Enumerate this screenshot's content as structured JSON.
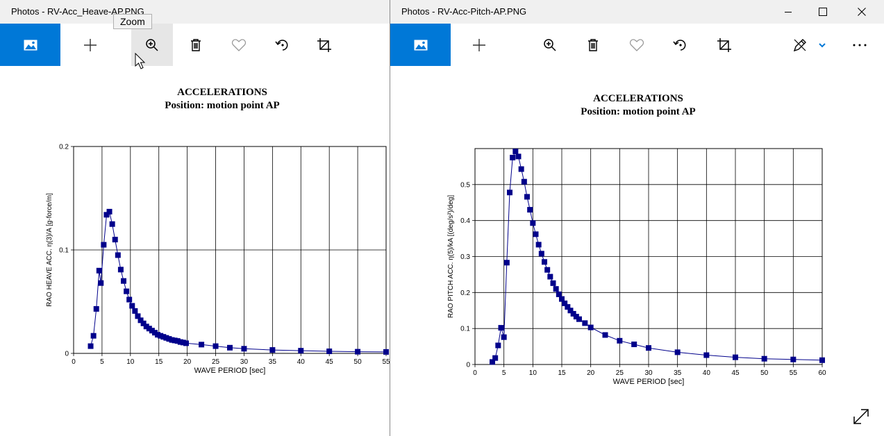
{
  "left_window": {
    "title": "Photos - RV-Acc_Heave-AP.PNG",
    "tooltip": "Zoom",
    "toolbar_icons": [
      "photo-icon",
      "add-icon",
      "zoom-in-icon",
      "delete-icon",
      "heart-icon",
      "rotate-icon",
      "crop-icon"
    ]
  },
  "right_window": {
    "title": "Photos - RV-Acc-Pitch-AP.PNG",
    "toolbar_icons": [
      "photo-icon",
      "add-icon",
      "zoom-in-icon",
      "delete-icon",
      "heart-icon",
      "rotate-icon",
      "crop-icon",
      "edit-draw-icon",
      "chevron-down-icon",
      "more-icon",
      "expand-icon"
    ],
    "window_controls": [
      "minimize",
      "maximize",
      "close"
    ]
  },
  "chart_data": [
    {
      "type": "line",
      "title": "ACCELERATIONS",
      "subtitle": "Position: motion point AP",
      "xlabel": "WAVE PERIOD  [sec]",
      "ylabel": "RAO  HEAVE ACC.  η(3)/A [g-force/m]",
      "xlim": [
        0,
        55
      ],
      "ylim": [
        0,
        0.2
      ],
      "xticks": [
        "0",
        "5",
        "10",
        "15",
        "20",
        "25",
        "30",
        "35",
        "40",
        "45",
        "50",
        "55"
      ],
      "yticks": [
        "0",
        "0.1",
        "0.2"
      ],
      "grid": true,
      "line_color": "#00008b",
      "series": [
        {
          "x": [
            3.0,
            3.5,
            4.0,
            4.5,
            4.8,
            5.3,
            5.8,
            6.3,
            6.8,
            7.3,
            7.8,
            8.3,
            8.8,
            9.3,
            9.8,
            10.3,
            10.8,
            11.3,
            11.8,
            12.3,
            12.8,
            13.3,
            13.8,
            14.3,
            14.8,
            15.3,
            15.8,
            16.3,
            16.8,
            17.3,
            17.8,
            18.3,
            18.8,
            19.3,
            19.8,
            22.5,
            25,
            27.5,
            30,
            35,
            40,
            45,
            50,
            55
          ],
          "y": [
            0.007,
            0.017,
            0.043,
            0.08,
            0.068,
            0.105,
            0.134,
            0.137,
            0.125,
            0.11,
            0.095,
            0.081,
            0.07,
            0.06,
            0.052,
            0.046,
            0.041,
            0.036,
            0.032,
            0.029,
            0.026,
            0.024,
            0.022,
            0.02,
            0.018,
            0.017,
            0.016,
            0.015,
            0.014,
            0.013,
            0.0125,
            0.012,
            0.011,
            0.0105,
            0.0098,
            0.0085,
            0.007,
            0.0055,
            0.0045,
            0.0033,
            0.0026,
            0.002,
            0.0016,
            0.0014
          ]
        }
      ]
    },
    {
      "type": "line",
      "title": "ACCELERATIONS",
      "subtitle": "Position: motion point AP",
      "xlabel": "WAVE PERIOD  [sec]",
      "ylabel": "RAO  PITCH ACC.  η(5)/kA [(deg/s²)/deg]",
      "xlim": [
        0,
        60
      ],
      "ylim": [
        0,
        0.6
      ],
      "xticks": [
        "0",
        "5",
        "10",
        "15",
        "20",
        "25",
        "30",
        "35",
        "40",
        "45",
        "50",
        "55",
        "60"
      ],
      "yticks": [
        "0",
        "0.1",
        "0.2",
        "0.3",
        "0.4",
        "0.5"
      ],
      "grid": true,
      "line_color": "#00008b",
      "series": [
        {
          "x": [
            3.0,
            3.5,
            4.0,
            4.5,
            5.0,
            5.5,
            6.0,
            6.5,
            7.0,
            7.5,
            8.0,
            8.5,
            9.0,
            9.5,
            10.0,
            10.5,
            11.0,
            11.5,
            12.0,
            12.5,
            13.0,
            13.5,
            14.0,
            14.5,
            15.0,
            15.5,
            16.0,
            16.5,
            17.0,
            17.5,
            18.0,
            19.0,
            20.0,
            22.5,
            25,
            27.5,
            30,
            35,
            40,
            45,
            50,
            55,
            60
          ],
          "y": [
            0.007,
            0.018,
            0.053,
            0.102,
            0.076,
            0.283,
            0.478,
            0.575,
            0.592,
            0.578,
            0.543,
            0.508,
            0.466,
            0.43,
            0.393,
            0.362,
            0.333,
            0.308,
            0.285,
            0.263,
            0.244,
            0.226,
            0.21,
            0.195,
            0.182,
            0.17,
            0.16,
            0.15,
            0.141,
            0.133,
            0.126,
            0.115,
            0.103,
            0.082,
            0.066,
            0.056,
            0.046,
            0.034,
            0.026,
            0.02,
            0.016,
            0.014,
            0.012
          ]
        }
      ]
    }
  ]
}
